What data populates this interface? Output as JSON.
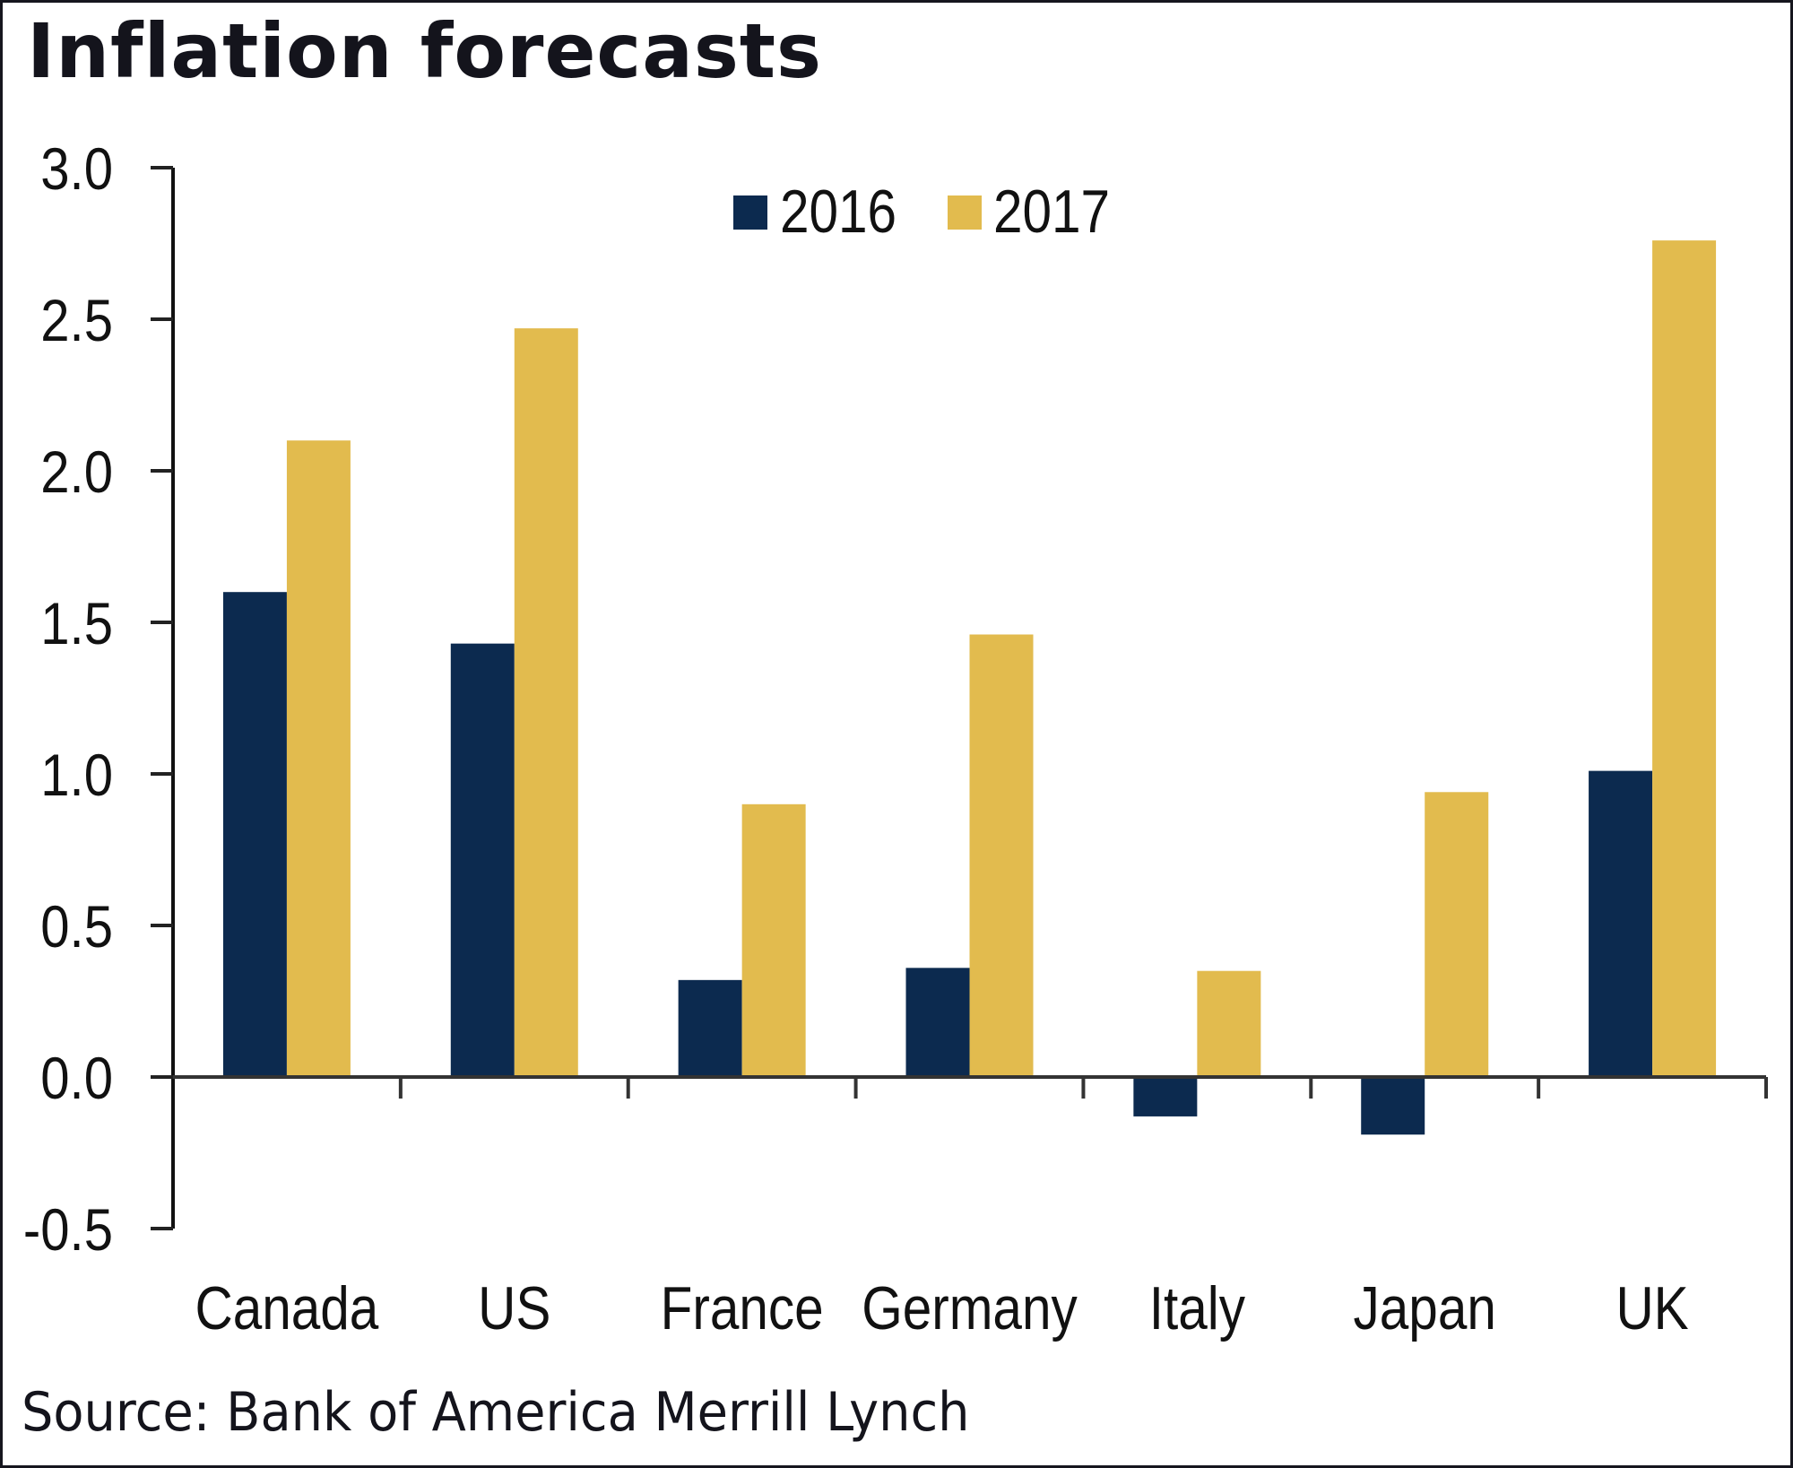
{
  "title": "Inflation forecasts",
  "source": "Source: Bank of America Merrill Lynch",
  "colors": {
    "2016": "#0c2a4f",
    "2017": "#e2bb4e",
    "axis": "#111111",
    "border": "#16161e"
  },
  "chart_data": {
    "type": "bar",
    "title": "Inflation forecasts",
    "xlabel": "",
    "ylabel": "",
    "categories": [
      "Canada",
      "US",
      "France",
      "Germany",
      "Italy",
      "Japan",
      "UK"
    ],
    "series": [
      {
        "name": "2016",
        "values": [
          1.6,
          1.43,
          0.32,
          0.36,
          -0.13,
          -0.19,
          1.01
        ]
      },
      {
        "name": "2017",
        "values": [
          2.1,
          2.47,
          0.9,
          1.46,
          0.35,
          0.94,
          2.76
        ]
      }
    ],
    "ylim": [
      -0.5,
      3.0
    ],
    "yticks": [
      -0.5,
      0.0,
      0.5,
      1.0,
      1.5,
      2.0,
      2.5,
      3.0
    ],
    "ytick_labels": [
      "-0.5",
      "0.0",
      "0.5",
      "1.0",
      "1.5",
      "2.0",
      "2.5",
      "3.0"
    ],
    "grid": false,
    "legend": {
      "position": "top-center",
      "entries": [
        "2016",
        "2017"
      ]
    },
    "source": "Source: Bank of America Merrill Lynch"
  }
}
